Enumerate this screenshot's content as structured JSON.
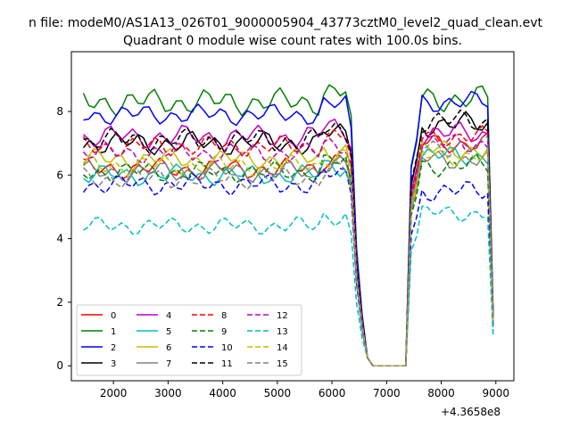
{
  "suptitle": "n file: modeM0/AS1A13_026T01_9000005904_43773cztM0_level2_quad_clean.evt",
  "chart_data": {
    "type": "line",
    "title": "Quadrant 0 module wise count rates with 100.0s bins.",
    "xlabel": "",
    "ylabel": "",
    "x_offset_label": "+4.3658e8",
    "xlim": [
      1230,
      9330
    ],
    "ylim": [
      -0.47,
      9.88
    ],
    "xticks": [
      2000,
      3000,
      4000,
      5000,
      6000,
      7000,
      8000,
      9000
    ],
    "xtick_labels": [
      "2000",
      "3000",
      "4000",
      "5000",
      "6000",
      "7000",
      "8000",
      "9000"
    ],
    "yticks": [
      0,
      2,
      4,
      6,
      8
    ],
    "ytick_labels": [
      "0",
      "2",
      "4",
      "6",
      "8"
    ],
    "grid": false,
    "legend_position": "lower-left",
    "series": [
      {
        "name": "0",
        "color": "#ff0000",
        "dash": "solid",
        "base": 6.2,
        "amp": 0.35,
        "rec": 7.0
      },
      {
        "name": "1",
        "color": "#008000",
        "dash": "solid",
        "base": 8.3,
        "amp": 0.45,
        "rec": 8.4
      },
      {
        "name": "2",
        "color": "#0000ff",
        "dash": "solid",
        "base": 7.9,
        "amp": 0.35,
        "rec": 8.3
      },
      {
        "name": "3",
        "color": "#000000",
        "dash": "solid",
        "base": 7.0,
        "amp": 0.4,
        "rec": 7.6
      },
      {
        "name": "4",
        "color": "#bf00bf",
        "dash": "solid",
        "base": 7.2,
        "amp": 0.4,
        "rec": 7.3
      },
      {
        "name": "5",
        "color": "#00bfbf",
        "dash": "solid",
        "base": 6.0,
        "amp": 0.35,
        "rec": 6.6
      },
      {
        "name": "6",
        "color": "#bfbf00",
        "dash": "solid",
        "base": 6.5,
        "amp": 0.35,
        "rec": 6.8
      },
      {
        "name": "7",
        "color": "#808080",
        "dash": "solid",
        "base": 6.1,
        "amp": 0.35,
        "rec": 6.5
      },
      {
        "name": "8",
        "color": "#ff0000",
        "dash": "dashed",
        "base": 6.9,
        "amp": 0.35,
        "rec": 7.2
      },
      {
        "name": "9",
        "color": "#008000",
        "dash": "dashed",
        "base": 6.1,
        "amp": 0.35,
        "rec": 6.3
      },
      {
        "name": "10",
        "color": "#0000ff",
        "dash": "dashed",
        "base": 5.7,
        "amp": 0.35,
        "rec": 5.5
      },
      {
        "name": "11",
        "color": "#000000",
        "dash": "dashed",
        "base": 7.1,
        "amp": 0.4,
        "rec": 7.7
      },
      {
        "name": "12",
        "color": "#bf00bf",
        "dash": "dashed",
        "base": 6.7,
        "amp": 0.35,
        "rec": 7.0
      },
      {
        "name": "13",
        "color": "#00bfbf",
        "dash": "dashed",
        "base": 4.4,
        "amp": 0.3,
        "rec": 4.8
      },
      {
        "name": "14",
        "color": "#bfbf00",
        "dash": "dashed",
        "base": 6.3,
        "amp": 0.35,
        "rec": 6.6
      },
      {
        "name": "15",
        "color": "#808080",
        "dash": "dashed",
        "base": 5.9,
        "amp": 0.35,
        "rec": 6.9
      }
    ]
  }
}
